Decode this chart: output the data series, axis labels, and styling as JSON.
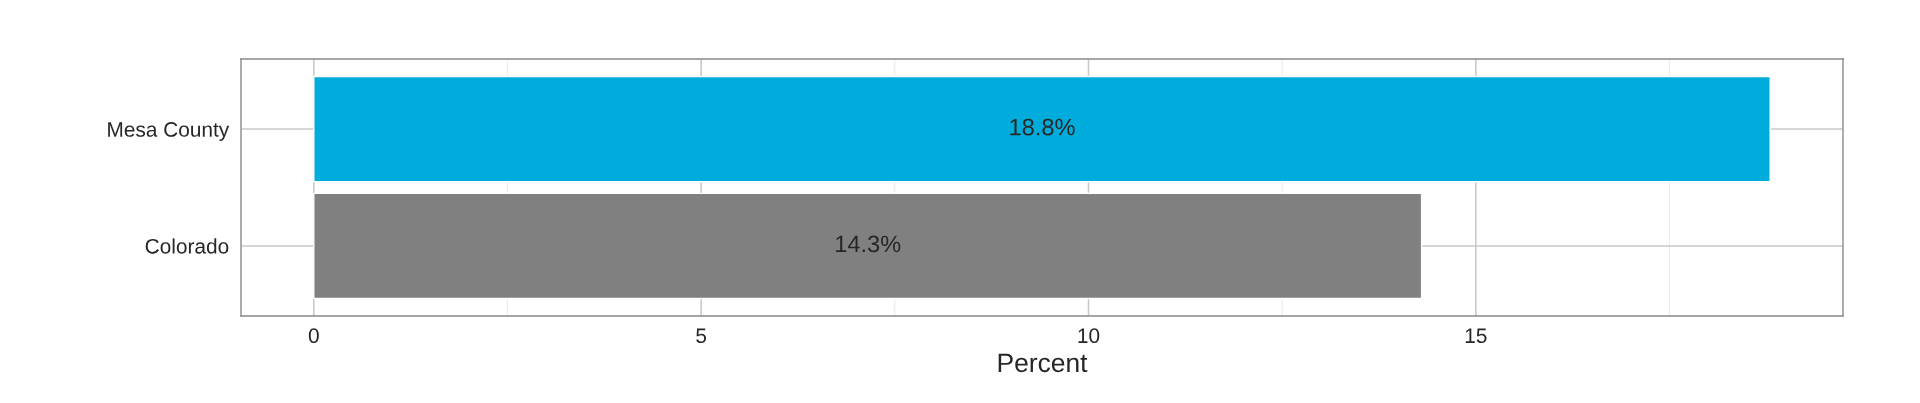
{
  "chart_data": {
    "type": "bar",
    "orientation": "horizontal",
    "xlabel": "Percent",
    "categories": [
      "Mesa County",
      "Colorado"
    ],
    "values": [
      18.8,
      14.3
    ],
    "colors": [
      "#00acdc",
      "#808080"
    ],
    "value_labels": [
      "18.8%",
      "14.3%"
    ],
    "xlim": [
      -0.94,
      19.74
    ],
    "xticks": [
      0,
      5,
      10,
      15
    ],
    "grid": true,
    "legend": false
  }
}
